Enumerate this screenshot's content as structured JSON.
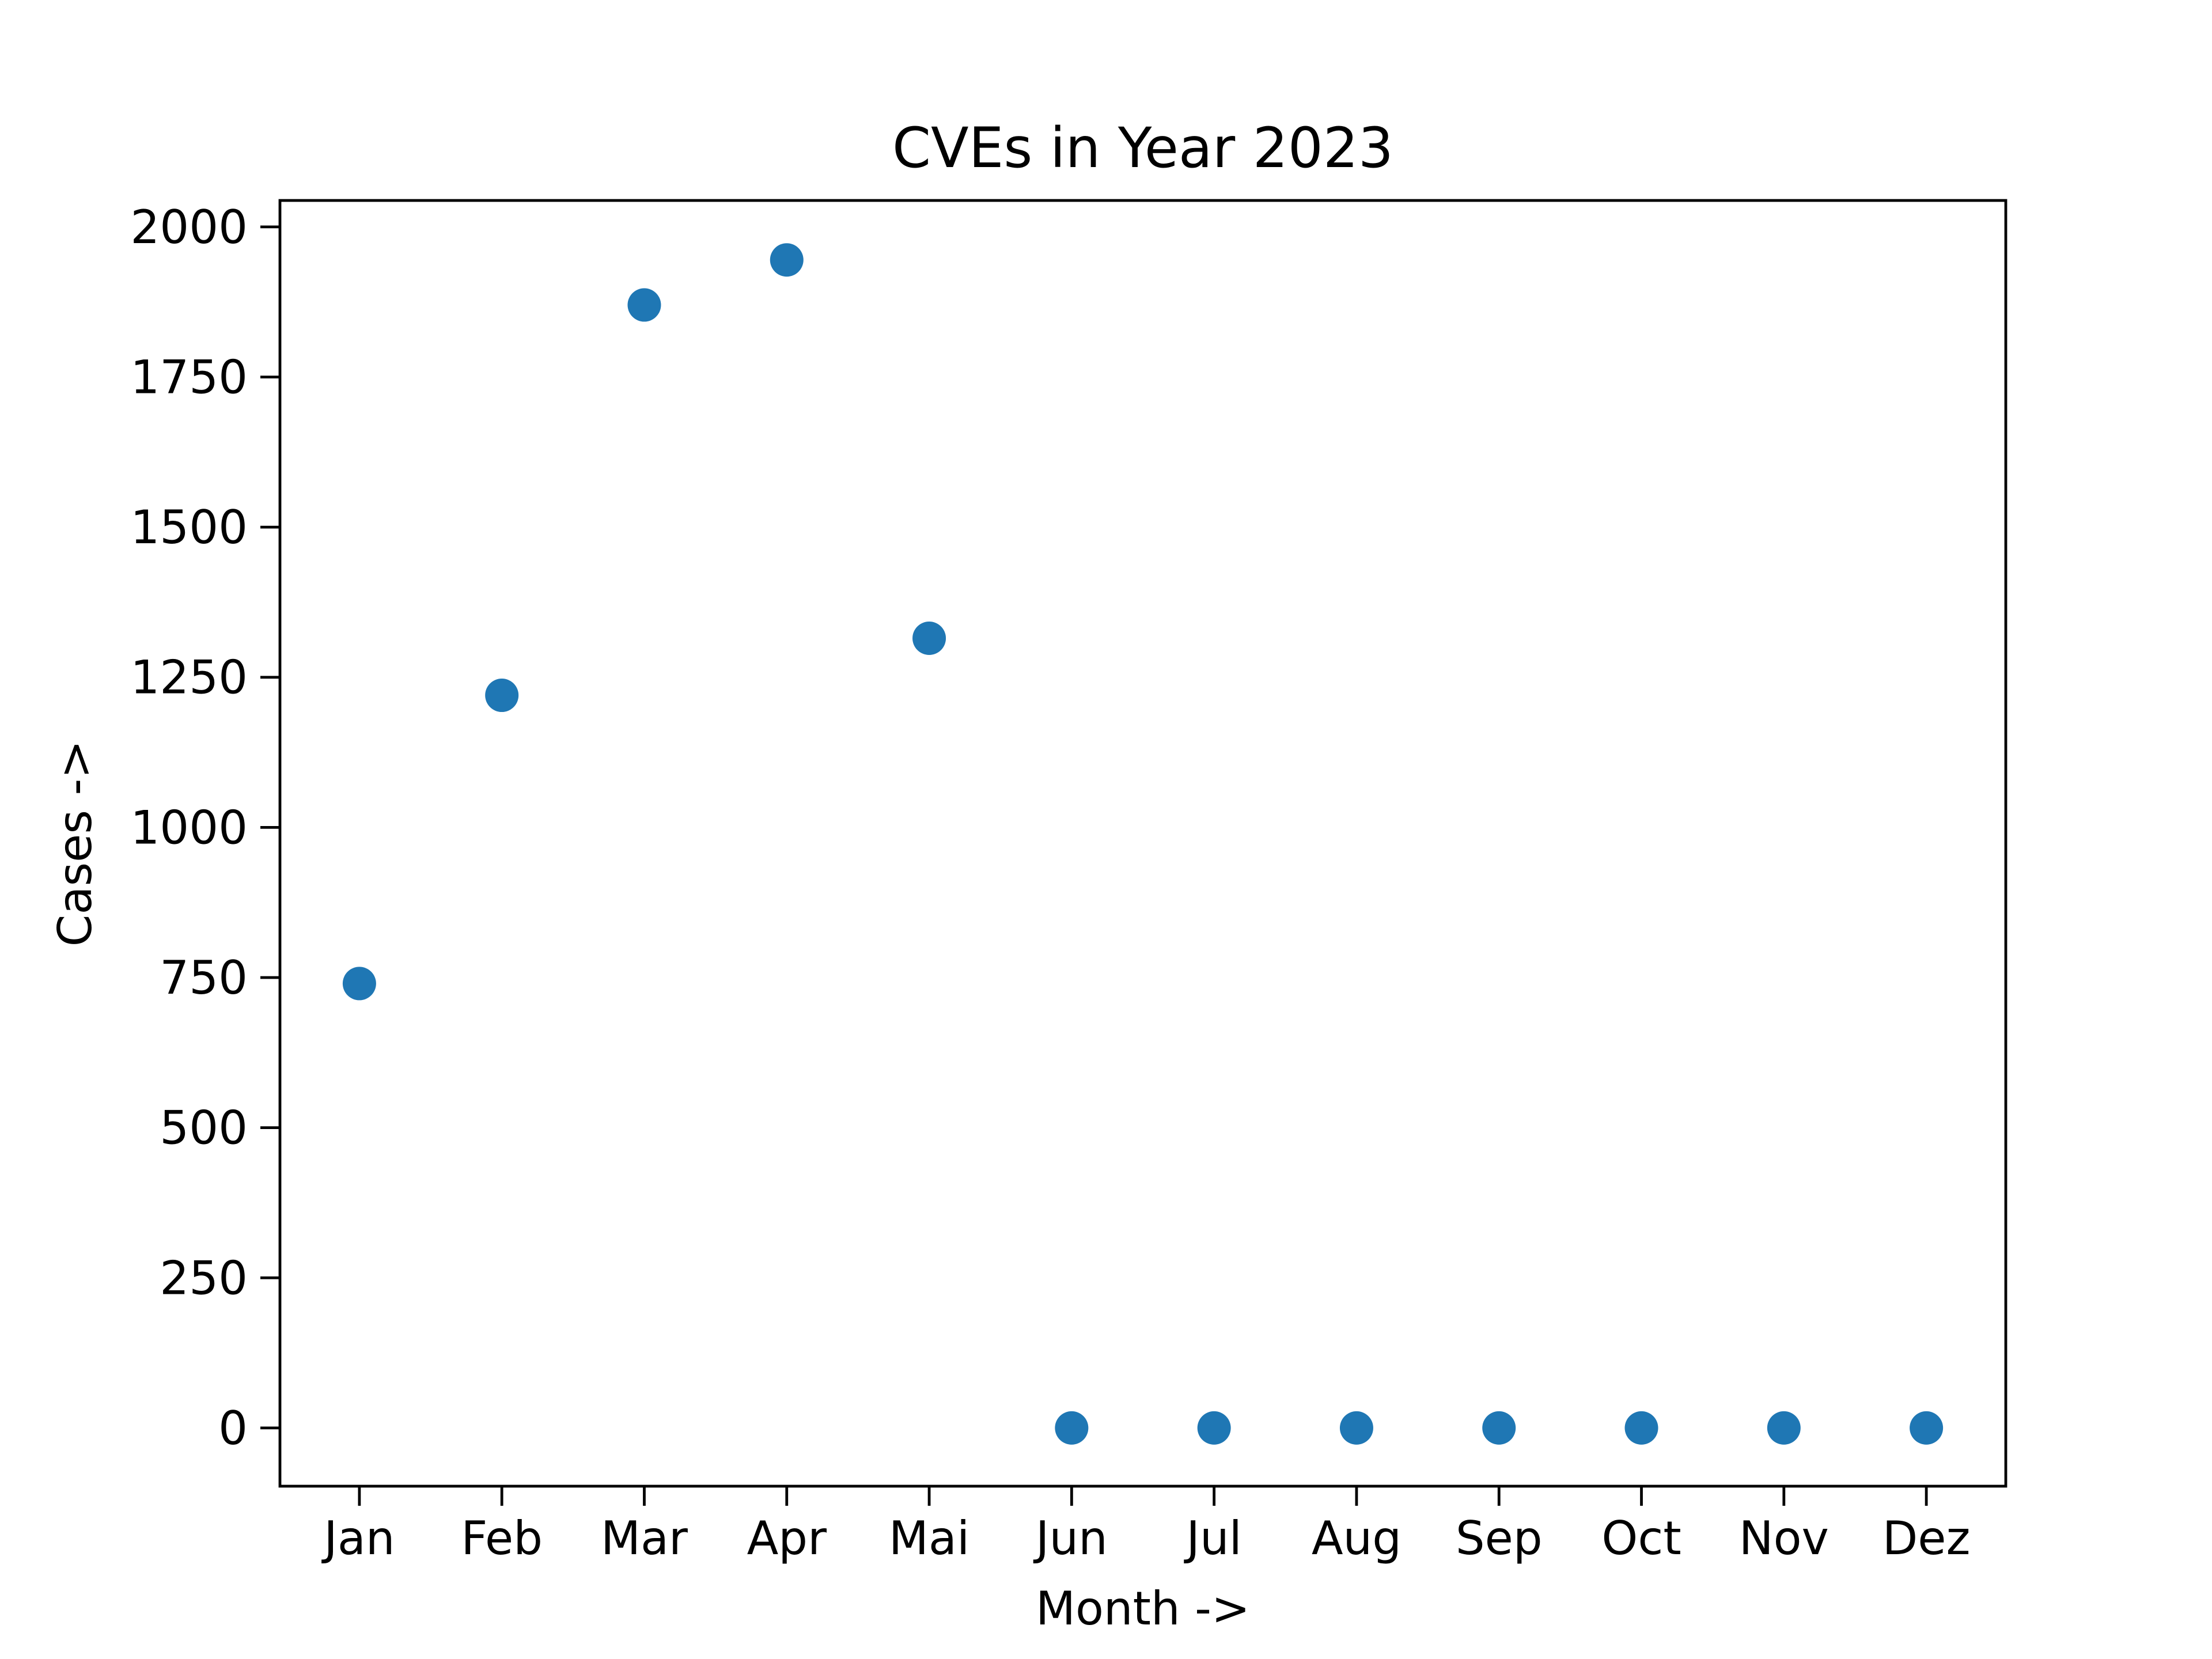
{
  "chart_data": {
    "type": "scatter",
    "title": "CVEs in Year 2023",
    "xlabel": "Month ->",
    "ylabel": "Cases ->",
    "categories": [
      "Jan",
      "Feb",
      "Mar",
      "Apr",
      "Mai",
      "Jun",
      "Jul",
      "Aug",
      "Sep",
      "Oct",
      "Nov",
      "Dez"
    ],
    "values": [
      740,
      1220,
      1870,
      1945,
      1315,
      0,
      0,
      0,
      0,
      0,
      0,
      0
    ],
    "yticks": [
      0,
      250,
      500,
      750,
      1000,
      1250,
      1500,
      1750,
      2000
    ],
    "ylim": [
      -97,
      2044
    ],
    "grid": false,
    "marker_color": "#1f77b4"
  }
}
